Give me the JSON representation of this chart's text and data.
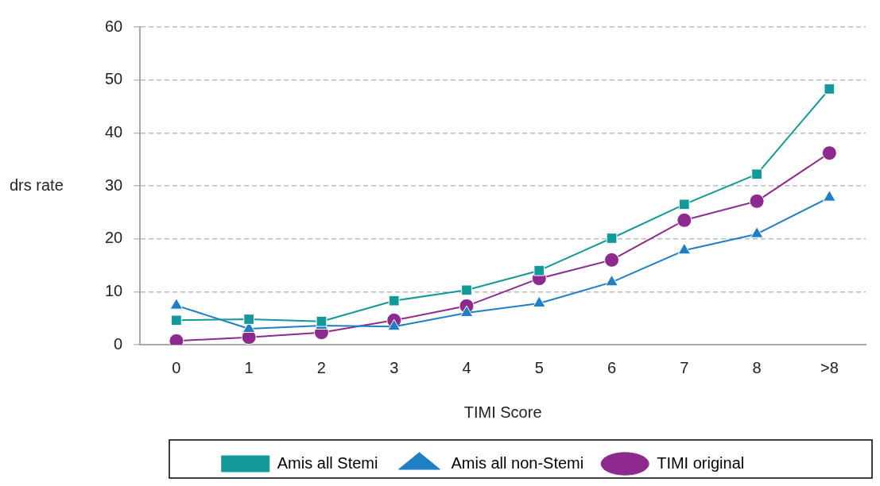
{
  "chart_data": {
    "type": "line",
    "xlabel": "TIMI Score",
    "ylabel": "drs rate",
    "categories": [
      "0",
      "1",
      "2",
      "3",
      "4",
      "5",
      "6",
      "7",
      "8",
      ">8"
    ],
    "series": [
      {
        "name": "Amis all Stemi",
        "color": "#13999a",
        "marker": "square",
        "values": [
          4.6,
          4.8,
          4.4,
          8.3,
          10.3,
          14,
          20.1,
          26.5,
          32.2,
          48.3
        ]
      },
      {
        "name": "Amis all non-Stemi",
        "color": "#1f7fc4",
        "marker": "triangle",
        "values": [
          7.4,
          3,
          3.6,
          3.4,
          6,
          7.8,
          11.8,
          17.8,
          20.9,
          27.8
        ]
      },
      {
        "name": "TIMI original",
        "color": "#8e2a8e",
        "marker": "circle",
        "values": [
          0.7,
          1.4,
          2.3,
          4.6,
          7.3,
          12.5,
          16,
          23.5,
          27.1,
          36.2
        ]
      }
    ],
    "ylim": [
      0,
      60
    ],
    "yticks": [
      0,
      10,
      20,
      30,
      40,
      50,
      60
    ],
    "grid": "y",
    "legend": "bottom",
    "line_style": "solid"
  }
}
